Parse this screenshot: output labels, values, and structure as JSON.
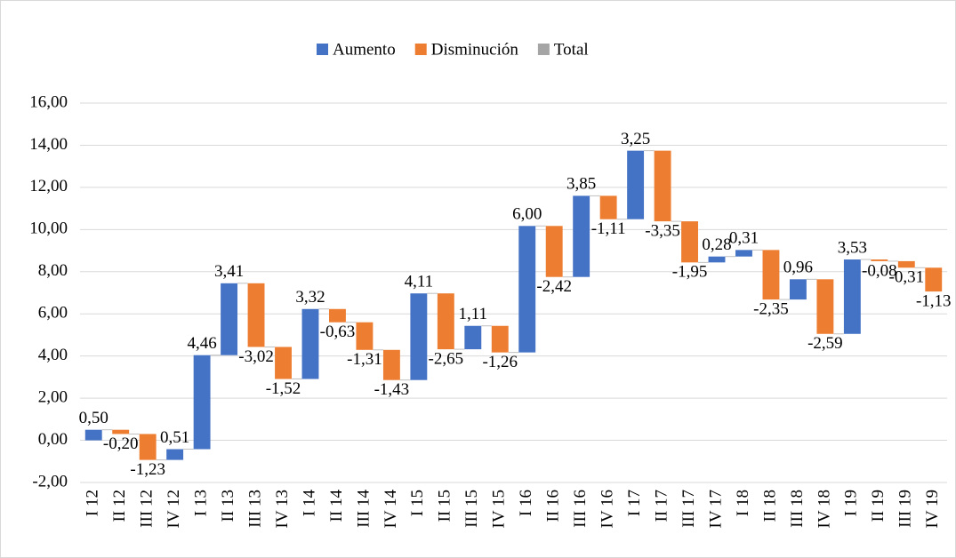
{
  "chart_data": {
    "type": "waterfall",
    "legend": [
      {
        "name": "Aumento",
        "color": "#4472c4"
      },
      {
        "name": "Disminución",
        "color": "#ed7d31"
      },
      {
        "name": "Total",
        "color": "#a5a5a5"
      }
    ],
    "categories": [
      "I 12",
      "II 12",
      "III 12",
      "IV 12",
      "I 13",
      "II 13",
      "III 13",
      "IV 13",
      "I 14",
      "II 14",
      "III 14",
      "IV 14",
      "I 15",
      "II 15",
      "III 15",
      "IV 15",
      "I 16",
      "II 16",
      "III 16",
      "IV 16",
      "I 17",
      "II 17",
      "III 17",
      "IV 17",
      "I 18",
      "II 18",
      "III 18",
      "IV 18",
      "I 19",
      "II 19",
      "III 19",
      "IV 19"
    ],
    "values": [
      0.5,
      -0.2,
      -1.23,
      0.51,
      4.46,
      3.41,
      -3.02,
      -1.52,
      3.32,
      -0.63,
      -1.31,
      -1.43,
      4.11,
      -2.65,
      1.11,
      -1.26,
      6.0,
      -2.42,
      3.85,
      -1.11,
      3.25,
      -3.35,
      -1.95,
      0.28,
      0.31,
      -2.35,
      0.96,
      -2.59,
      3.53,
      -0.08,
      -0.31,
      -1.13
    ],
    "value_labels": [
      "0,50",
      "-0,20",
      "-1,23",
      "0,51",
      "4,46",
      "3,41",
      "-3,02",
      "-1,52",
      "3,32",
      "-0,63",
      "-1,31",
      "-1,43",
      "4,11",
      "-2,65",
      "1,11",
      "-1,26",
      "6,00",
      "-2,42",
      "3,85",
      "-1,11",
      "3,25",
      "-3,35",
      "-1,95",
      "0,28",
      "0,31",
      "-2,35",
      "0,96",
      "-2,59",
      "3,53",
      "-0,08",
      "-0,31",
      "-1,13"
    ],
    "ylim": [
      -2,
      16
    ],
    "yticks": [
      {
        "value": -2,
        "label": "-2,00"
      },
      {
        "value": 0,
        "label": "0,00"
      },
      {
        "value": 2,
        "label": "2,00"
      },
      {
        "value": 4,
        "label": "4,00"
      },
      {
        "value": 6,
        "label": "6,00"
      },
      {
        "value": 8,
        "label": "8,00"
      },
      {
        "value": 10,
        "label": "10,00"
      },
      {
        "value": 12,
        "label": "12,00"
      },
      {
        "value": 14,
        "label": "14,00"
      },
      {
        "value": 16,
        "label": "16,00"
      }
    ],
    "grid": true
  }
}
